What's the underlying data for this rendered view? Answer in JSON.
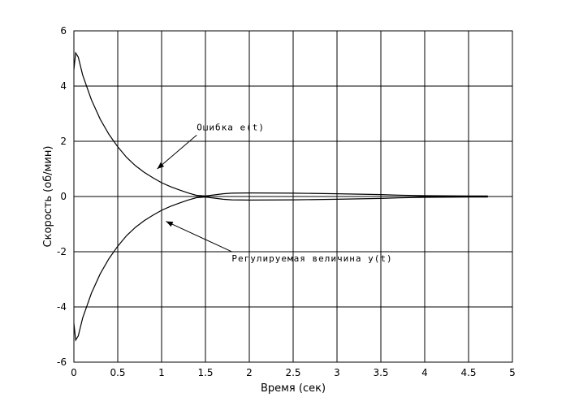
{
  "chart_data": {
    "type": "line",
    "xlabel": "Время (сек)",
    "ylabel": "Скорость (об/мин)",
    "xlim": [
      0,
      5
    ],
    "ylim": [
      -6,
      6
    ],
    "xticks": [
      0,
      0.5,
      1,
      1.5,
      2,
      2.5,
      3,
      3.5,
      4,
      4.5,
      5
    ],
    "yticks": [
      -6,
      -4,
      -2,
      0,
      2,
      4,
      6
    ],
    "xtick_labels": [
      "0",
      "0.5",
      "1",
      "1.5",
      "2",
      "2.5",
      "3",
      "3.5",
      "4",
      "4.5",
      "5"
    ],
    "ytick_labels": [
      "-6",
      "-4",
      "-2",
      "0",
      "2",
      "4",
      "6"
    ],
    "grid": true,
    "line_color": "#000000",
    "series": [
      {
        "x": [
          0,
          0.02,
          0.05,
          0.1,
          0.2,
          0.3,
          0.4,
          0.5,
          0.6,
          0.7,
          0.8,
          0.9,
          1.0,
          1.1,
          1.2,
          1.3,
          1.4,
          1.5,
          1.6,
          1.7,
          1.8,
          2.0,
          2.5,
          3.0,
          3.5,
          3.7,
          4.0,
          4.5,
          4.72
        ],
        "y": [
          4.6,
          5.2,
          5.05,
          4.4,
          3.5,
          2.8,
          2.25,
          1.8,
          1.42,
          1.12,
          0.88,
          0.68,
          0.5,
          0.36,
          0.24,
          0.13,
          0.04,
          0.02,
          0.06,
          0.1,
          0.12,
          0.13,
          0.12,
          0.1,
          0.07,
          0.05,
          0.03,
          0.02,
          0.02
        ]
      },
      {
        "x": [
          0,
          0.02,
          0.05,
          0.1,
          0.2,
          0.3,
          0.4,
          0.5,
          0.6,
          0.7,
          0.8,
          0.9,
          1.0,
          1.1,
          1.2,
          1.3,
          1.4,
          1.5,
          1.6,
          1.7,
          1.8,
          2.0,
          2.5,
          3.0,
          3.5,
          3.7,
          4.0,
          4.5,
          4.72
        ],
        "y": [
          -4.6,
          -5.2,
          -5.05,
          -4.4,
          -3.5,
          -2.8,
          -2.25,
          -1.8,
          -1.42,
          -1.12,
          -0.88,
          -0.68,
          -0.5,
          -0.36,
          -0.24,
          -0.13,
          -0.04,
          -0.02,
          -0.06,
          -0.1,
          -0.12,
          -0.13,
          -0.12,
          -0.1,
          -0.07,
          -0.05,
          -0.03,
          -0.02,
          -0.02
        ]
      }
    ],
    "annotations": [
      {
        "text": "Ошибка e(t)",
        "x": 1.4,
        "y": 2.4,
        "arrow_to": [
          0.95,
          1.0
        ]
      },
      {
        "text": "Регулируемая величина y(t)",
        "x": 1.8,
        "y": -2.35,
        "arrow_to": [
          1.05,
          -0.9
        ]
      }
    ]
  }
}
